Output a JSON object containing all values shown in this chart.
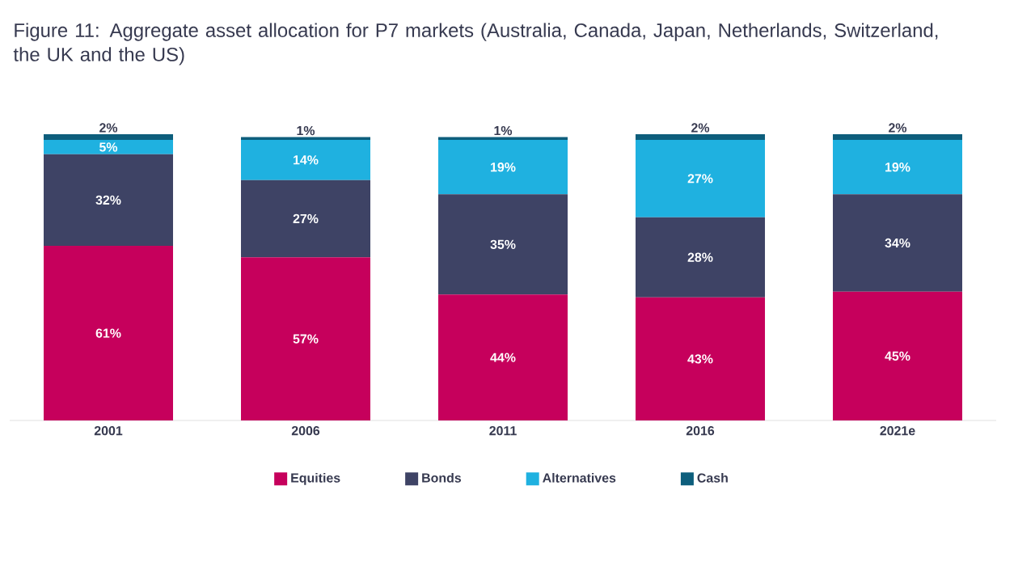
{
  "chart_data": {
    "type": "bar",
    "stacked": true,
    "title": "Figure 11: Aggregate asset allocation for P7 markets (Australia, Canada, Japan, Netherlands, Switzerland, the UK and the US)",
    "categories": [
      "2001",
      "2006",
      "2011",
      "2016",
      "2021e"
    ],
    "series": [
      {
        "name": "Equities",
        "color": "#c6005c",
        "values": [
          61,
          57,
          44,
          43,
          45
        ],
        "value_labels": [
          "61%",
          "57%",
          "44%",
          "43%",
          "45%"
        ]
      },
      {
        "name": "Bonds",
        "color": "#3e4365",
        "values": [
          32,
          27,
          35,
          28,
          34
        ],
        "value_labels": [
          "32%",
          "27%",
          "35%",
          "28%",
          "34%"
        ]
      },
      {
        "name": "Alternatives",
        "color": "#1fb1e0",
        "values": [
          5,
          14,
          19,
          27,
          19
        ],
        "value_labels": [
          "5%",
          "14%",
          "19%",
          "27%",
          "19%"
        ]
      },
      {
        "name": "Cash",
        "color": "#0d5e7c",
        "values": [
          2,
          1,
          1,
          2,
          2
        ],
        "value_labels": [
          "2%",
          "1%",
          "1%",
          "2%",
          "2%"
        ]
      }
    ],
    "ylim": [
      0,
      100
    ],
    "legend": "bottom",
    "tick_labels": "x"
  }
}
